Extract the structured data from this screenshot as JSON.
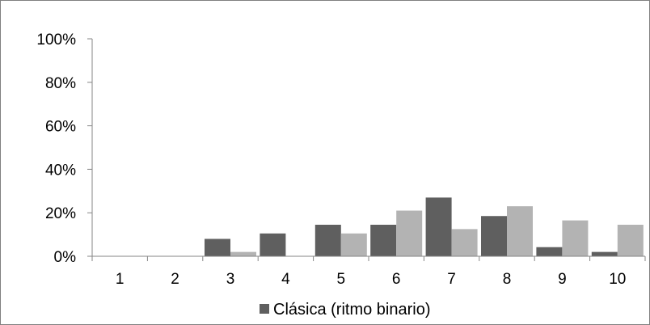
{
  "chart_data": {
    "type": "bar",
    "categories": [
      "1",
      "2",
      "3",
      "4",
      "5",
      "6",
      "7",
      "8",
      "9",
      "10"
    ],
    "series": [
      {
        "name": "Clásica (ritmo binario)",
        "color": "#5f5f5f",
        "values": [
          0,
          0,
          8,
          10.5,
          14.5,
          14.5,
          27,
          18.5,
          4.2,
          2
        ]
      },
      {
        "color": "#b3b3b3",
        "values": [
          0,
          0,
          2,
          0,
          10.5,
          21,
          12.5,
          23,
          16.5,
          14.5
        ]
      }
    ],
    "ylim": [
      0,
      100
    ],
    "yticks": [
      "0%",
      "20%",
      "40%",
      "60%",
      "80%",
      "100%"
    ],
    "ytick_values": [
      0,
      20,
      40,
      60,
      80,
      100
    ],
    "grid": false,
    "legend_position": "bottom"
  }
}
